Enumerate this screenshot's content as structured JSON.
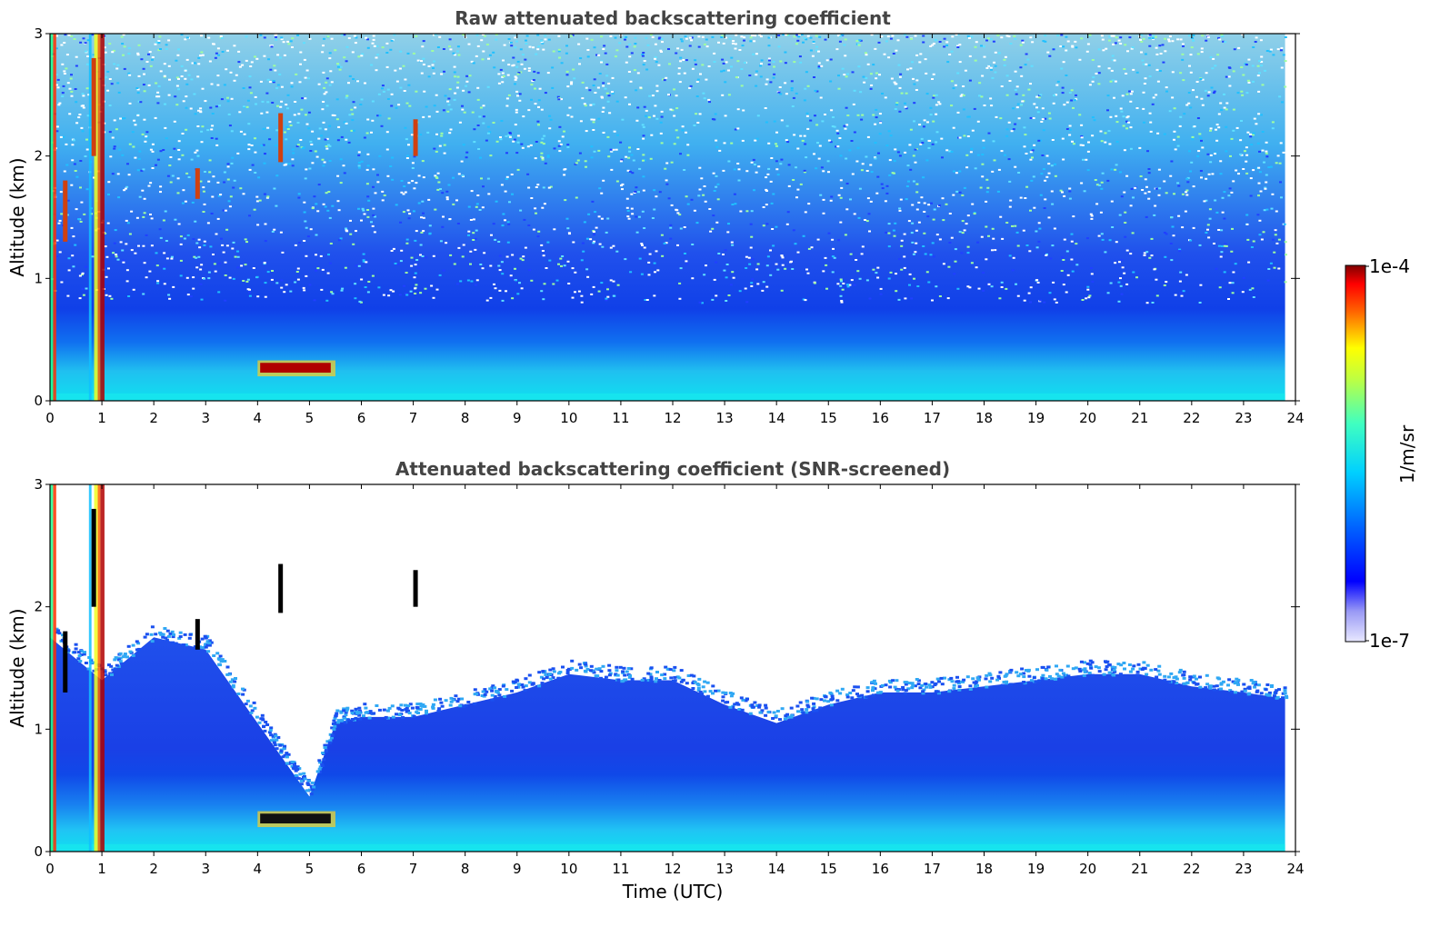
{
  "chart_data": [
    {
      "type": "heatmap",
      "title": "Raw attenuated backscattering coefficient",
      "xlabel": "",
      "ylabel": "Altitude (km)",
      "xlim": [
        0,
        24
      ],
      "ylim": [
        0,
        3
      ],
      "xticks": [
        "0",
        "1",
        "2",
        "3",
        "4",
        "5",
        "6",
        "7",
        "8",
        "9",
        "10",
        "11",
        "12",
        "13",
        "14",
        "15",
        "16",
        "17",
        "18",
        "19",
        "20",
        "21",
        "22",
        "23",
        "24"
      ],
      "yticks": [
        "0",
        "1",
        "2",
        "3"
      ],
      "data_end_time": 23.8,
      "features": {
        "boundary_layer_top_km": 0.55,
        "aerosol_layer_altitude_km": 0.28,
        "aerosol_layer_time_utc": [
          4.0,
          5.5
        ],
        "clouds_time_utc": [
          0.0,
          0.3,
          0.85,
          1.0
        ],
        "noise_onset_altitude_km": 0.8
      }
    },
    {
      "type": "heatmap",
      "title": "Attenuated backscattering coefficient (SNR-screened)",
      "xlabel": "Time (UTC)",
      "ylabel": "Altitude (km)",
      "xlim": [
        0,
        24
      ],
      "ylim": [
        0,
        3
      ],
      "xticks": [
        "0",
        "1",
        "2",
        "3",
        "4",
        "5",
        "6",
        "7",
        "8",
        "9",
        "10",
        "11",
        "12",
        "13",
        "14",
        "15",
        "16",
        "17",
        "18",
        "19",
        "20",
        "21",
        "22",
        "23",
        "24"
      ],
      "yticks": [
        "0",
        "1",
        "2",
        "3"
      ],
      "data_end_time": 23.8,
      "screened_top_km": [
        [
          0,
          1.75
        ],
        [
          1,
          1.4
        ],
        [
          2,
          1.75
        ],
        [
          3,
          1.65
        ],
        [
          4,
          1.05
        ],
        [
          4.5,
          0.75
        ],
        [
          5,
          0.45
        ],
        [
          5.5,
          1.05
        ],
        [
          6,
          1.1
        ],
        [
          7,
          1.1
        ],
        [
          8,
          1.2
        ],
        [
          9,
          1.3
        ],
        [
          10,
          1.45
        ],
        [
          11,
          1.4
        ],
        [
          12,
          1.4
        ],
        [
          13,
          1.2
        ],
        [
          14,
          1.05
        ],
        [
          15,
          1.2
        ],
        [
          16,
          1.3
        ],
        [
          17,
          1.3
        ],
        [
          18,
          1.35
        ],
        [
          19,
          1.4
        ],
        [
          20,
          1.45
        ],
        [
          21,
          1.45
        ],
        [
          22,
          1.35
        ],
        [
          23,
          1.3
        ],
        [
          23.8,
          1.25
        ]
      ]
    }
  ],
  "colorbar": {
    "max_label": "1e-4",
    "min_label": "1e-7",
    "unit_label": "1/m/sr",
    "colormap": "jet"
  },
  "colors": {
    "low": "#0000ff",
    "mid": "#00c8ff",
    "high": "#8b0000",
    "background": "#ffffff"
  }
}
